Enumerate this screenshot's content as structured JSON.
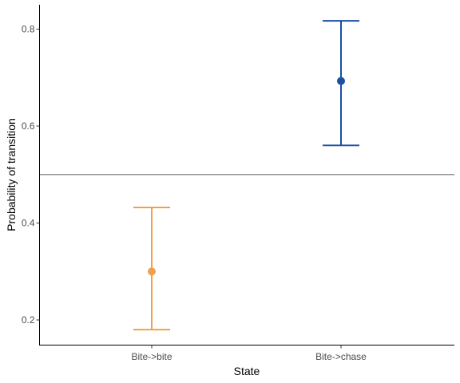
{
  "chart_data": {
    "type": "scatter",
    "title": "",
    "xlabel": "State",
    "ylabel": "Probability of transition",
    "categories": [
      "Bite->bite",
      "Bite->chase"
    ],
    "points": [
      {
        "category": "Bite->bite",
        "value": 0.3,
        "lower": 0.18,
        "upper": 0.432,
        "color": "#F0A04B"
      },
      {
        "category": "Bite->chase",
        "value": 0.693,
        "lower": 0.56,
        "upper": 0.817,
        "color": "#1A4FA3"
      }
    ],
    "y_ticks": [
      0.2,
      0.4,
      0.6,
      0.8
    ],
    "y_tick_labels": [
      "0.2",
      "0.4",
      "0.6",
      "0.8"
    ],
    "ylim": [
      0.15,
      0.85
    ],
    "reference_line": {
      "y": 0.5,
      "color": "#999999"
    },
    "grid": false,
    "legend": "none"
  }
}
